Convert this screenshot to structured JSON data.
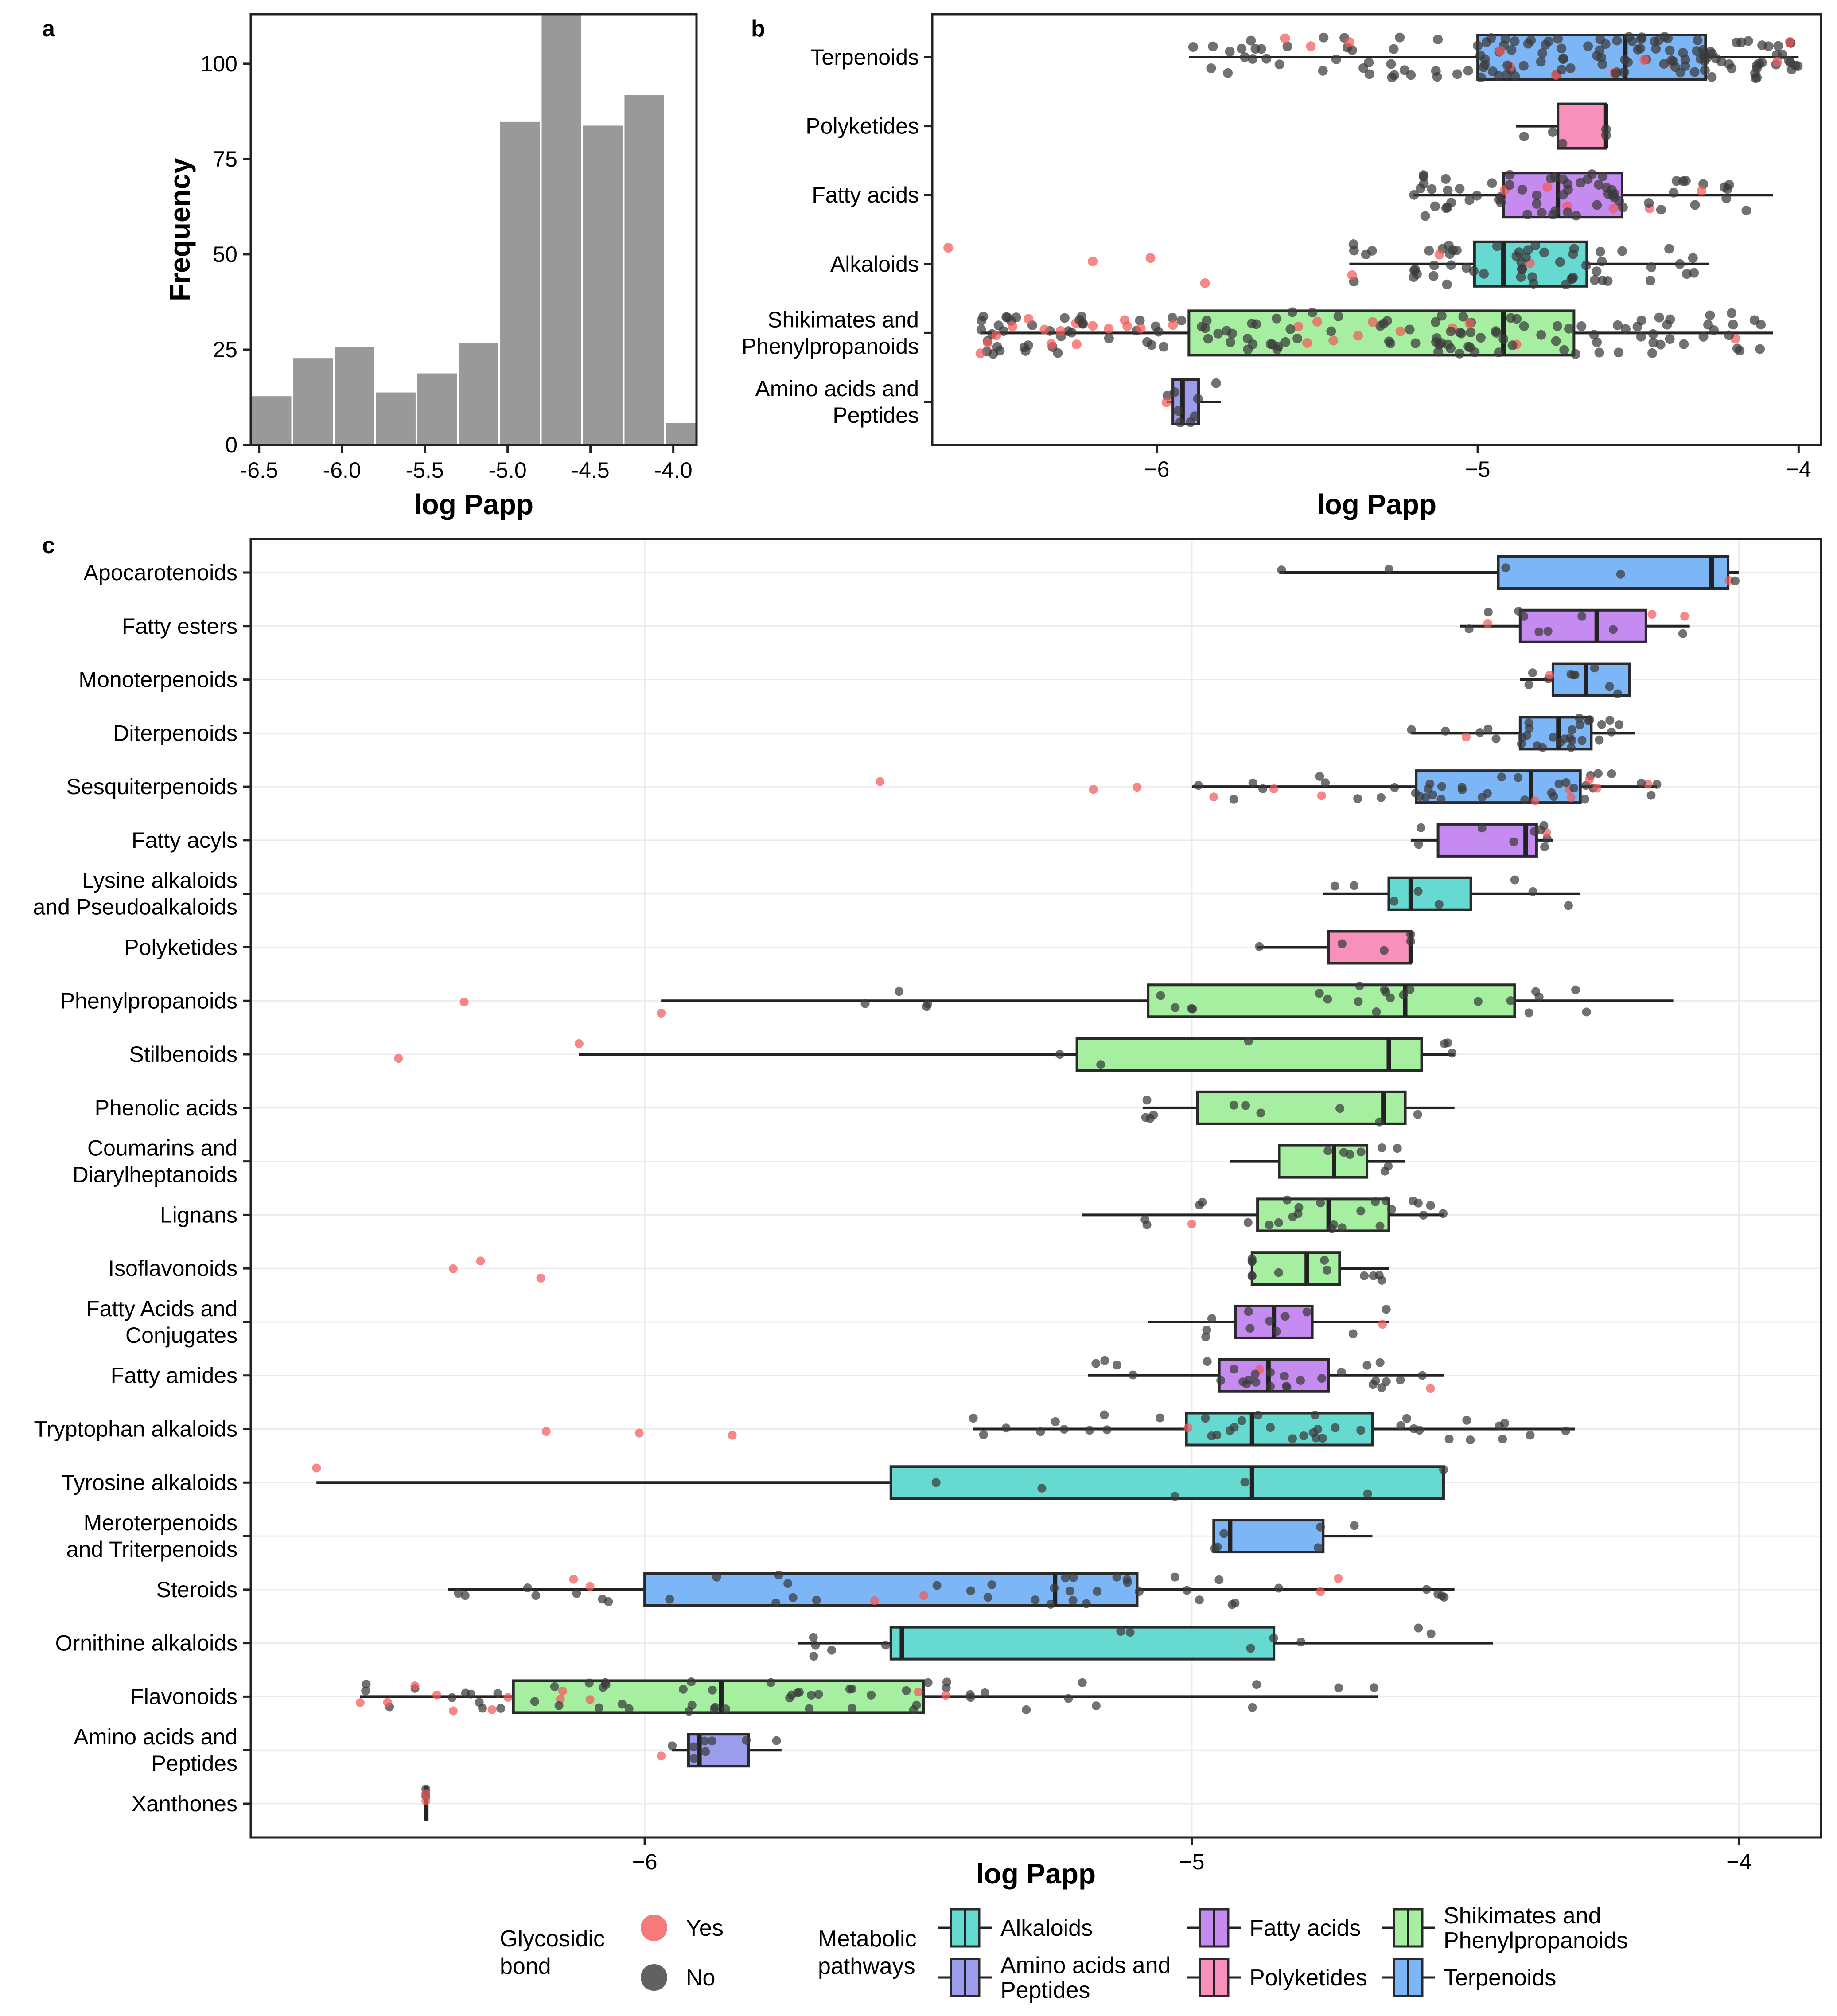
{
  "panel_labels": {
    "a": "a",
    "b": "b",
    "c": "c"
  },
  "colors": {
    "Alkaloids": "#66D9D0",
    "Amino acids and Peptides": "#9C9CEC",
    "Fatty acids": "#C58BF0",
    "Polyketides": "#F890BC",
    "Shikimates and Phenylpropanoids": "#A6EFA0",
    "Terpenoids": "#7DB6F7",
    "hist": "#999999",
    "yes": "#F25A5A",
    "no": "#3A3A3A"
  },
  "legend": {
    "glyco_title": [
      "Glycosidic",
      "bond"
    ],
    "glyco_items": [
      {
        "label": "Yes",
        "color": "#F25A5A"
      },
      {
        "label": "No",
        "color": "#3A3A3A"
      }
    ],
    "path_title": [
      "Metabolic",
      "pathways"
    ],
    "path_items": [
      {
        "label": [
          "Alkaloids"
        ],
        "key": "Alkaloids"
      },
      {
        "label": [
          "Amino acids and",
          "Peptides"
        ],
        "key": "Amino acids and Peptides"
      },
      {
        "label": [
          "Fatty acids"
        ],
        "key": "Fatty acids"
      },
      {
        "label": [
          "Polyketides"
        ],
        "key": "Polyketides"
      },
      {
        "label": [
          "Shikimates and",
          "Phenylpropanoids"
        ],
        "key": "Shikimates and Phenylpropanoids"
      },
      {
        "label": [
          "Terpenoids"
        ],
        "key": "Terpenoids"
      }
    ]
  },
  "chart_data": [
    {
      "panel": "a",
      "type": "bar",
      "title": "",
      "xlabel": "log Papp",
      "ylabel": "Frequency",
      "xlim": [
        -6.55,
        -3.86
      ],
      "ylim": [
        0,
        113
      ],
      "xticks": [
        -6.5,
        -6.0,
        -5.5,
        -5.0,
        -4.5,
        -4.0
      ],
      "xtick_labels": [
        "-6.5",
        "-6.0",
        "-5.5",
        "-5.0",
        "-4.5",
        "-4.0"
      ],
      "yticks": [
        0,
        25,
        50,
        75,
        100
      ],
      "ytick_labels": [
        "0",
        "25",
        "50",
        "75",
        "100"
      ],
      "bin_edges": [
        -6.55,
        -6.3,
        -6.05,
        -5.8,
        -5.55,
        -5.3,
        -5.05,
        -4.8,
        -4.55,
        -4.3,
        -4.05,
        -3.86
      ],
      "values": [
        13,
        23,
        26,
        14,
        19,
        27,
        85,
        113,
        84,
        92,
        6
      ]
    },
    {
      "panel": "b",
      "type": "box",
      "xlabel": "log Papp",
      "xlim": [
        -6.7,
        -3.93
      ],
      "xticks": [
        -6,
        -5,
        -4
      ],
      "xtick_labels": [
        "−6",
        "−5",
        "−4"
      ],
      "categories": [
        {
          "label": [
            "Terpenoids"
          ],
          "pathway": "Terpenoids",
          "q1": -5.0,
          "median": -4.54,
          "q3": -4.29,
          "wlo": -5.9,
          "whi": -4.0,
          "n": 150,
          "ylo": [
            -5.6,
            -5.4,
            -4.93
          ],
          "yhi": []
        },
        {
          "label": [
            "Polyketides"
          ],
          "pathway": "Polyketides",
          "q1": -4.75,
          "median": -4.6,
          "q3": -4.6,
          "wlo": -4.88,
          "whi": -4.6,
          "n": 5,
          "ylo": [],
          "yhi": []
        },
        {
          "label": [
            "Fatty acids"
          ],
          "pathway": "Fatty acids",
          "q1": -4.92,
          "median": -4.75,
          "q3": -4.55,
          "wlo": -5.2,
          "whi": -4.08,
          "n": 70,
          "ylo": [],
          "yhi": []
        },
        {
          "label": [
            "Alkaloids"
          ],
          "pathway": "Alkaloids",
          "q1": -5.01,
          "median": -4.92,
          "q3": -4.66,
          "wlo": -5.4,
          "whi": -4.28,
          "n": 60,
          "ylo": [
            -6.65,
            -6.2,
            -6.02,
            -5.85
          ],
          "yhi": []
        },
        {
          "label": [
            "Shikimates and",
            "Phenylpropanoids"
          ],
          "pathway": "Shikimates and Phenylpropanoids",
          "q1": -5.9,
          "median": -4.92,
          "q3": -4.7,
          "wlo": -6.55,
          "whi": -4.08,
          "n": 150,
          "ylo": [
            -6.55,
            -6.5,
            -6.45,
            -6.4,
            -6.35,
            -6.3,
            -6.25,
            -6.2,
            -6.15,
            -6.1,
            -6.05,
            -5.95,
            -5.5,
            -5.45
          ],
          "yhi": []
        },
        {
          "label": [
            "Amino acids and",
            "Peptides"
          ],
          "pathway": "Amino acids and Peptides",
          "q1": -5.95,
          "median": -5.92,
          "q3": -5.87,
          "wlo": -5.97,
          "whi": -5.8,
          "n": 8,
          "ylo": [
            -5.97
          ],
          "yhi": []
        }
      ]
    },
    {
      "panel": "c",
      "type": "box",
      "xlabel": "log Papp",
      "xlim": [
        -6.72,
        -3.85
      ],
      "xticks": [
        -6,
        -5,
        -4
      ],
      "xtick_labels": [
        "−6",
        "−5",
        "−4"
      ],
      "categories": [
        {
          "label": [
            "Apocarotenoids"
          ],
          "pathway": "Terpenoids",
          "q1": -4.44,
          "median": -4.05,
          "q3": -4.02,
          "wlo": -4.84,
          "whi": -4.0,
          "n": 6,
          "ylo": [],
          "yhi": []
        },
        {
          "label": [
            "Fatty esters"
          ],
          "pathway": "Fatty acids",
          "q1": -4.4,
          "median": -4.26,
          "q3": -4.17,
          "wlo": -4.51,
          "whi": -4.09,
          "n": 12,
          "ylo": [],
          "yhi": []
        },
        {
          "label": [
            "Monoterpenoids"
          ],
          "pathway": "Terpenoids",
          "q1": -4.34,
          "median": -4.28,
          "q3": -4.2,
          "wlo": -4.4,
          "whi": -4.2,
          "n": 10,
          "ylo": [],
          "yhi": []
        },
        {
          "label": [
            "Diterpenoids"
          ],
          "pathway": "Terpenoids",
          "q1": -4.4,
          "median": -4.33,
          "q3": -4.27,
          "wlo": -4.6,
          "whi": -4.19,
          "n": 30,
          "ylo": [],
          "yhi": []
        },
        {
          "label": [
            "Sesquiterpenoids"
          ],
          "pathway": "Terpenoids",
          "q1": -4.59,
          "median": -4.38,
          "q3": -4.29,
          "wlo": -5.0,
          "whi": -4.15,
          "n": 45,
          "ylo": [
            -5.57,
            -5.18,
            -5.1,
            -4.96,
            -4.85
          ],
          "yhi": []
        },
        {
          "label": [
            "Fatty acyls"
          ],
          "pathway": "Fatty acids",
          "q1": -4.55,
          "median": -4.39,
          "q3": -4.37,
          "wlo": -4.6,
          "whi": -4.34,
          "n": 10,
          "ylo": [],
          "yhi": []
        },
        {
          "label": [
            "Lysine alkaloids",
            "and Pseudoalkaloids"
          ],
          "pathway": "Alkaloids",
          "q1": -4.64,
          "median": -4.6,
          "q3": -4.49,
          "wlo": -4.76,
          "whi": -4.29,
          "n": 8,
          "ylo": [],
          "yhi": []
        },
        {
          "label": [
            "Polyketides"
          ],
          "pathway": "Polyketides",
          "q1": -4.75,
          "median": -4.6,
          "q3": -4.6,
          "wlo": -4.88,
          "whi": -4.6,
          "n": 5,
          "ylo": [],
          "yhi": []
        },
        {
          "label": [
            "Phenylpropanoids"
          ],
          "pathway": "Shikimates and Phenylpropanoids",
          "q1": -5.08,
          "median": -4.61,
          "q3": -4.41,
          "wlo": -5.97,
          "whi": -4.12,
          "n": 25,
          "ylo": [
            -6.33,
            -5.97
          ],
          "yhi": []
        },
        {
          "label": [
            "Stilbenoids"
          ],
          "pathway": "Shikimates and Phenylpropanoids",
          "q1": -5.21,
          "median": -4.64,
          "q3": -4.58,
          "wlo": -6.12,
          "whi": -4.52,
          "n": 6,
          "ylo": [
            -6.45,
            -6.12
          ],
          "yhi": []
        },
        {
          "label": [
            "Phenolic acids"
          ],
          "pathway": "Shikimates and Phenylpropanoids",
          "q1": -4.99,
          "median": -4.65,
          "q3": -4.61,
          "wlo": -5.09,
          "whi": -4.52,
          "n": 10,
          "ylo": [],
          "yhi": []
        },
        {
          "label": [
            "Coumarins and",
            "Diarylheptanoids"
          ],
          "pathway": "Shikimates and Phenylpropanoids",
          "q1": -4.84,
          "median": -4.74,
          "q3": -4.68,
          "wlo": -4.93,
          "whi": -4.61,
          "n": 8,
          "ylo": [],
          "yhi": []
        },
        {
          "label": [
            "Lignans"
          ],
          "pathway": "Shikimates and Phenylpropanoids",
          "q1": -4.88,
          "median": -4.75,
          "q3": -4.64,
          "wlo": -5.2,
          "whi": -4.54,
          "n": 25,
          "ylo": [
            -5.0
          ],
          "yhi": []
        },
        {
          "label": [
            "Isoflavonoids"
          ],
          "pathway": "Shikimates and Phenylpropanoids",
          "q1": -4.89,
          "median": -4.79,
          "q3": -4.73,
          "wlo": -4.89,
          "whi": -4.64,
          "n": 12,
          "ylo": [
            -6.35,
            -6.3,
            -6.19
          ],
          "yhi": []
        },
        {
          "label": [
            "Fatty Acids and",
            "Conjugates"
          ],
          "pathway": "Fatty acids",
          "q1": -4.92,
          "median": -4.85,
          "q3": -4.78,
          "wlo": -5.08,
          "whi": -4.64,
          "n": 12,
          "ylo": [],
          "yhi": []
        },
        {
          "label": [
            "Fatty amides"
          ],
          "pathway": "Fatty acids",
          "q1": -4.95,
          "median": -4.86,
          "q3": -4.75,
          "wlo": -5.19,
          "whi": -4.54,
          "n": 30,
          "ylo": [],
          "yhi": []
        },
        {
          "label": [
            "Tryptophan alkaloids"
          ],
          "pathway": "Alkaloids",
          "q1": -5.01,
          "median": -4.89,
          "q3": -4.67,
          "wlo": -5.4,
          "whi": -4.3,
          "n": 40,
          "ylo": [
            -6.18,
            -6.01,
            -5.84
          ],
          "yhi": []
        },
        {
          "label": [
            "Tyrosine alkaloids"
          ],
          "pathway": "Alkaloids",
          "q1": -5.55,
          "median": -4.89,
          "q3": -4.54,
          "wlo": -6.6,
          "whi": -4.54,
          "n": 6,
          "ylo": [
            -6.6
          ],
          "yhi": []
        },
        {
          "label": [
            "Meroterpenoids",
            "and Triterpenoids"
          ],
          "pathway": "Terpenoids",
          "q1": -4.96,
          "median": -4.93,
          "q3": -4.76,
          "wlo": -4.96,
          "whi": -4.67,
          "n": 6,
          "ylo": [],
          "yhi": []
        },
        {
          "label": [
            "Steroids"
          ],
          "pathway": "Terpenoids",
          "q1": -6.0,
          "median": -5.25,
          "q3": -5.1,
          "wlo": -6.36,
          "whi": -4.52,
          "n": 45,
          "ylo": [
            -6.13,
            -6.1,
            -5.58
          ],
          "yhi": []
        },
        {
          "label": [
            "Ornithine alkaloids"
          ],
          "pathway": "Alkaloids",
          "q1": -5.55,
          "median": -5.53,
          "q3": -4.85,
          "wlo": -5.72,
          "whi": -4.45,
          "n": 12,
          "ylo": [],
          "yhi": []
        },
        {
          "label": [
            "Flavonoids"
          ],
          "pathway": "Shikimates and Phenylpropanoids",
          "q1": -6.24,
          "median": -5.86,
          "q3": -5.49,
          "wlo": -6.52,
          "whi": -4.66,
          "n": 60,
          "ylo": [
            -6.52,
            -6.47,
            -6.42,
            -6.38,
            -6.35,
            -6.25,
            -6.15,
            -6.1,
            -5.5,
            -5.45
          ],
          "yhi": []
        },
        {
          "label": [
            "Amino acids and",
            "Peptides"
          ],
          "pathway": "Amino acids and Peptides",
          "q1": -5.92,
          "median": -5.9,
          "q3": -5.81,
          "wlo": -5.95,
          "whi": -5.75,
          "n": 8,
          "ylo": [
            -5.97
          ],
          "yhi": []
        },
        {
          "label": [
            "Xanthones"
          ],
          "pathway": "Shikimates and Phenylpropanoids",
          "q1": -6.4,
          "median": -6.4,
          "q3": -6.4,
          "wlo": -6.4,
          "whi": -6.4,
          "n": 3,
          "ylo": [
            -6.4,
            -6.4
          ],
          "yhi": []
        }
      ]
    }
  ]
}
